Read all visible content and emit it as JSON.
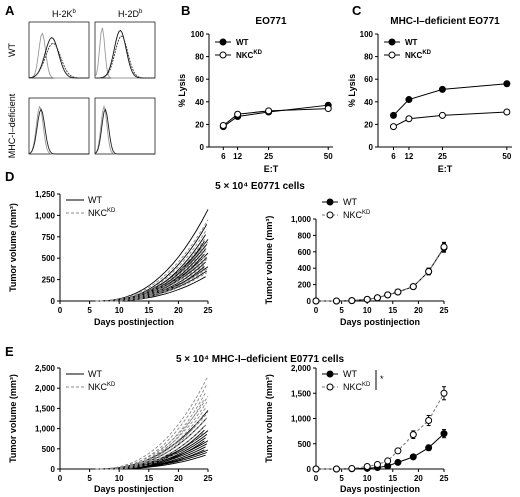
{
  "panel_letters": {
    "a": "A",
    "b": "B",
    "c": "C",
    "d": "D",
    "e": "E"
  },
  "flow": {
    "col1": "H-2K",
    "col1_sup": "b",
    "col2": "H-2D",
    "col2_sup": "b",
    "row1": "WT",
    "row2": "MHC-I–deficient"
  },
  "chart_data": [
    {
      "id": "B",
      "type": "line",
      "title": "EO771",
      "xlabel": "E:T",
      "ylabel": "% Lysis",
      "xticks": [
        6,
        12,
        25,
        50
      ],
      "xlim": [
        0,
        52
      ],
      "ylim": [
        0,
        100
      ],
      "yticks": [
        0,
        20,
        40,
        60,
        80,
        100
      ],
      "x": [
        6,
        12,
        25,
        50
      ],
      "legend": [
        {
          "label": "WT",
          "sup": ""
        },
        {
          "label": "NKC",
          "sup": "KD"
        }
      ],
      "series": [
        {
          "name": "WT",
          "marker": "filled",
          "values": [
            18,
            27,
            31,
            37
          ]
        },
        {
          "name": "NKCKD",
          "marker": "open",
          "values": [
            19,
            29,
            32,
            34
          ]
        }
      ]
    },
    {
      "id": "C",
      "type": "line",
      "title": "MHC-I–deficient EO771",
      "xlabel": "E:T",
      "ylabel": "% Lysis",
      "xticks": [
        6,
        12,
        25,
        50
      ],
      "xlim": [
        0,
        52
      ],
      "ylim": [
        0,
        100
      ],
      "yticks": [
        0,
        20,
        40,
        60,
        80,
        100
      ],
      "x": [
        6,
        12,
        25,
        50
      ],
      "legend": [
        {
          "label": "WT",
          "sup": ""
        },
        {
          "label": "NKC",
          "sup": "KD"
        }
      ],
      "series": [
        {
          "name": "WT",
          "marker": "filled",
          "values": [
            28,
            42,
            51,
            56
          ]
        },
        {
          "name": "NKCKD",
          "marker": "open",
          "values": [
            18,
            25,
            28,
            31
          ]
        }
      ]
    },
    {
      "id": "D-left",
      "type": "line",
      "section_title": "5 × 10⁴ E0771 cells",
      "xlabel": "Days postinjection",
      "ylabel": "Tumor volume (mm³)",
      "xticks": [
        0,
        5,
        10,
        15,
        20,
        25
      ],
      "yticks": [
        "0",
        "250",
        "500",
        "750",
        "1,000",
        "1,250"
      ],
      "ylim": [
        0,
        1250
      ],
      "legend": [
        {
          "label": "WT",
          "sup": "",
          "style": "solid"
        },
        {
          "label": "NKC",
          "sup": "KD",
          "style": "dashed"
        }
      ],
      "days": [
        7,
        9,
        11,
        13,
        15,
        17,
        19,
        21,
        23,
        25
      ],
      "series": [
        {
          "name": "WT",
          "style": "solid",
          "final": [
            1070,
            920,
            820,
            760,
            720,
            680,
            640,
            600,
            560,
            520,
            480,
            440,
            400,
            360,
            300
          ]
        },
        {
          "name": "NKCKD",
          "style": "dashed",
          "final": [
            950,
            860,
            780,
            730,
            690,
            650,
            610,
            570,
            530,
            500,
            460,
            420,
            380,
            340
          ]
        }
      ]
    },
    {
      "id": "D-right",
      "type": "line",
      "xlabel": "Days postinjection",
      "ylabel": "Tumor volume (mm³)",
      "xticks": [
        0,
        5,
        10,
        15,
        20,
        25
      ],
      "yticks": [
        "0",
        "200",
        "400",
        "600",
        "800",
        "1,000"
      ],
      "ylim": [
        0,
        1000
      ],
      "legend": [
        {
          "label": "WT",
          "sup": ""
        },
        {
          "label": "NKC",
          "sup": "KD"
        }
      ],
      "x": [
        0,
        4,
        7,
        10,
        12,
        14,
        16,
        19,
        22,
        25
      ],
      "series": [
        {
          "name": "WT",
          "marker": "filled",
          "style": "solid",
          "values": [
            0,
            0,
            5,
            20,
            40,
            75,
            110,
            175,
            360,
            650
          ],
          "err": [
            0,
            0,
            2,
            5,
            8,
            10,
            15,
            25,
            40,
            55
          ]
        },
        {
          "name": "NKCKD",
          "marker": "open",
          "style": "dashed",
          "values": [
            0,
            0,
            5,
            20,
            40,
            75,
            110,
            175,
            360,
            660
          ],
          "err": [
            0,
            0,
            2,
            5,
            8,
            10,
            15,
            25,
            40,
            55
          ]
        }
      ]
    },
    {
      "id": "E-left",
      "type": "line",
      "section_title": "5 × 10⁴ MHC-I–deficient E0771 cells",
      "xlabel": "Days postinjection",
      "ylabel": "Tumor volume (mm³)",
      "xticks": [
        0,
        5,
        10,
        15,
        20,
        25
      ],
      "yticks": [
        "0",
        "500",
        "1,000",
        "1,500",
        "2,000",
        "2,500"
      ],
      "ylim": [
        0,
        2500
      ],
      "legend": [
        {
          "label": "WT",
          "sup": "",
          "style": "solid"
        },
        {
          "label": "NKC",
          "sup": "KD",
          "style": "dashed"
        }
      ],
      "days": [
        7,
        9,
        11,
        13,
        15,
        17,
        19,
        21,
        23,
        25
      ],
      "series": [
        {
          "name": "WT",
          "style": "solid",
          "final": [
            1450,
            1300,
            1150,
            1050,
            950,
            880,
            820,
            760,
            700,
            640,
            580,
            520,
            470,
            420,
            360
          ]
        },
        {
          "name": "NKCKD",
          "style": "dashed",
          "final": [
            2300,
            2150,
            2000,
            1900,
            1800,
            1700,
            1600,
            1500,
            1400,
            1300,
            1150,
            1000
          ]
        }
      ]
    },
    {
      "id": "E-right",
      "type": "line",
      "xlabel": "Days postinjection",
      "ylabel": "Tumor volume (mm³)",
      "xticks": [
        0,
        5,
        10,
        15,
        20,
        25
      ],
      "yticks": [
        "0",
        "500",
        "1,000",
        "1,500",
        "2,000"
      ],
      "ylim": [
        0,
        2000
      ],
      "legend": [
        {
          "label": "WT",
          "sup": ""
        },
        {
          "label": "NKC",
          "sup": "KD"
        }
      ],
      "significance": "*",
      "x": [
        0,
        4,
        7,
        10,
        12,
        14,
        16,
        19,
        22,
        25
      ],
      "series": [
        {
          "name": "WT",
          "marker": "filled",
          "style": "solid",
          "values": [
            0,
            0,
            5,
            15,
            30,
            60,
            130,
            240,
            420,
            700
          ],
          "err": [
            0,
            0,
            2,
            5,
            8,
            12,
            20,
            35,
            55,
            80
          ]
        },
        {
          "name": "NKCKD",
          "marker": "open",
          "style": "dashed",
          "values": [
            0,
            0,
            10,
            50,
            90,
            160,
            360,
            680,
            960,
            1500
          ],
          "err": [
            0,
            0,
            4,
            10,
            15,
            25,
            50,
            75,
            100,
            130
          ]
        }
      ]
    }
  ]
}
